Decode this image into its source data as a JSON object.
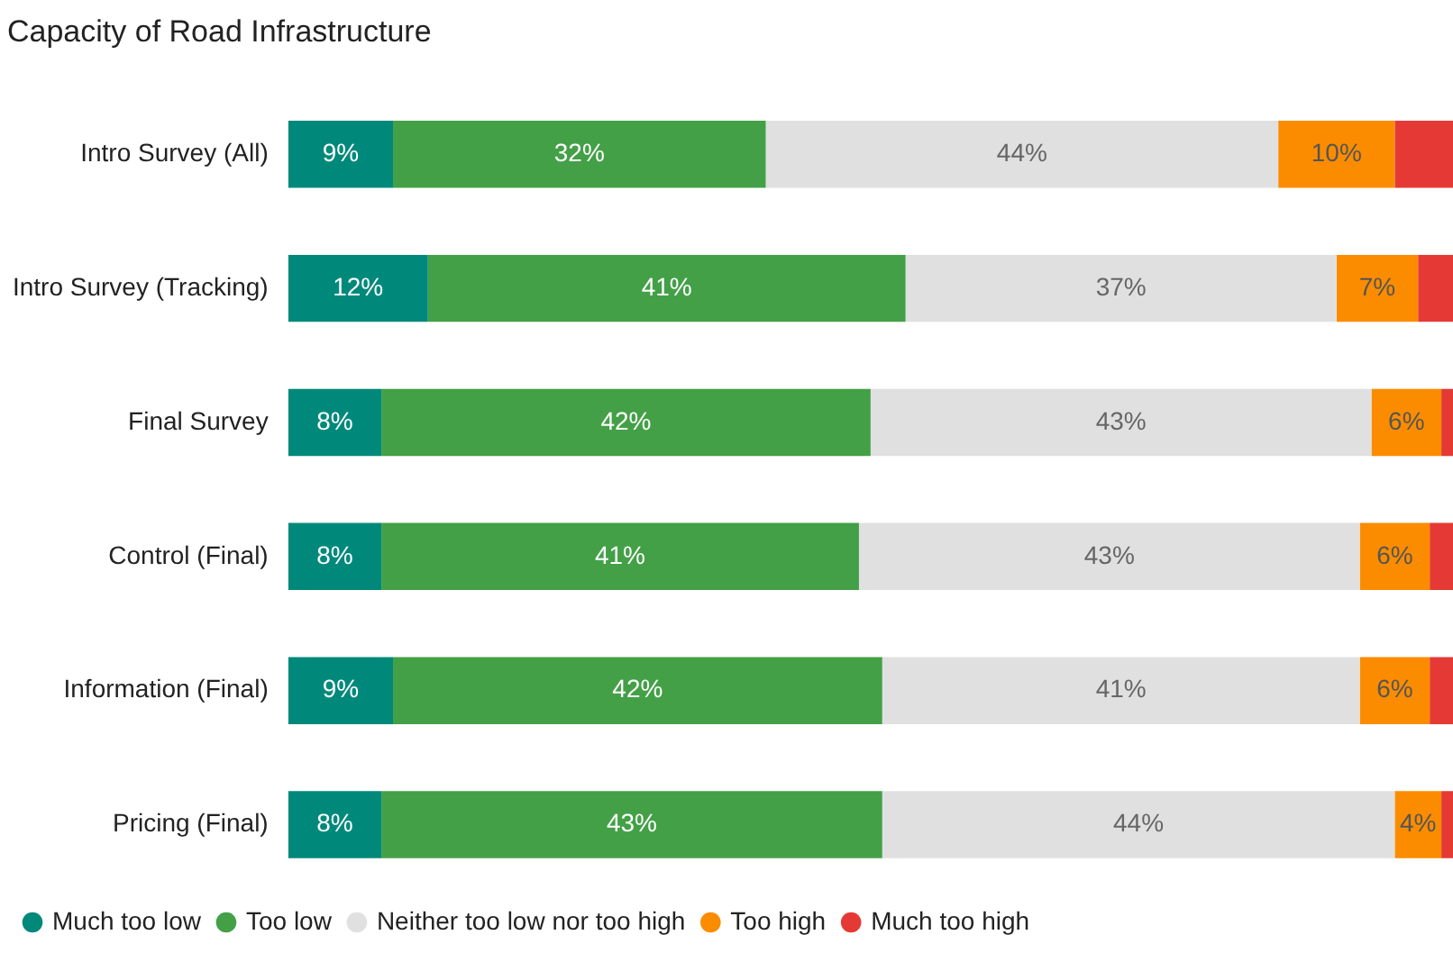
{
  "chart_data": {
    "type": "bar",
    "orientation": "horizontal",
    "stacked": true,
    "title": "Capacity of Road Infrastructure",
    "legend": "bottom",
    "grid": false,
    "tick_labels": "y",
    "categories": [
      "Intro Survey (All)",
      "Intro Survey (Tracking)",
      "Final Survey",
      "Control (Final)",
      "Information (Final)",
      "Pricing (Final)"
    ],
    "series": [
      {
        "name": "Much too low",
        "color": "#00897b",
        "values": [
          9,
          12,
          8,
          8,
          9,
          8
        ],
        "value_labels": [
          "9%",
          "12%",
          "8%",
          "8%",
          "9%",
          "8%"
        ]
      },
      {
        "name": "Too low",
        "color": "#43a047",
        "values": [
          32,
          41,
          42,
          41,
          42,
          43
        ],
        "value_labels": [
          "32%",
          "41%",
          "42%",
          "41%",
          "42%",
          "43%"
        ]
      },
      {
        "name": "Neither too low nor too high",
        "color": "#e0e0e0",
        "values": [
          44,
          37,
          43,
          43,
          41,
          44
        ],
        "value_labels": [
          "44%",
          "37%",
          "43%",
          "43%",
          "41%",
          "44%"
        ]
      },
      {
        "name": "Too high",
        "color": "#fb8c00",
        "values": [
          10,
          7,
          6,
          6,
          6,
          4
        ],
        "value_labels": [
          "10%",
          "7%",
          "6%",
          "6%",
          "6%",
          "4%"
        ]
      },
      {
        "name": "Much too high",
        "color": "#e53935",
        "values": [
          5,
          3,
          1,
          2,
          2,
          1
        ],
        "value_labels": [
          null,
          null,
          null,
          null,
          null,
          null
        ]
      }
    ]
  }
}
